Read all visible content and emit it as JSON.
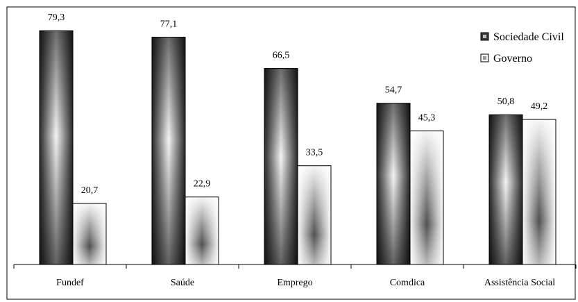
{
  "chart_data": {
    "type": "bar",
    "title": "",
    "xlabel": "",
    "ylabel": "",
    "categories": [
      "Fundef",
      "Saúde",
      "Emprego",
      "Comdica",
      "Assistência Social"
    ],
    "series": [
      {
        "name": "Sociedade Civil",
        "values": [
          79.3,
          77.1,
          66.5,
          54.7,
          50.8
        ],
        "labels": [
          "79,3",
          "77,1",
          "66,5",
          "54,7",
          "50,8"
        ]
      },
      {
        "name": "Governo",
        "values": [
          20.7,
          22.9,
          33.5,
          45.3,
          49.2
        ],
        "labels": [
          "20,7",
          "22,9",
          "33,5",
          "45,3",
          "49,2"
        ]
      }
    ],
    "ylim": [
      0,
      85
    ],
    "grid": false,
    "legend": "top-right"
  }
}
